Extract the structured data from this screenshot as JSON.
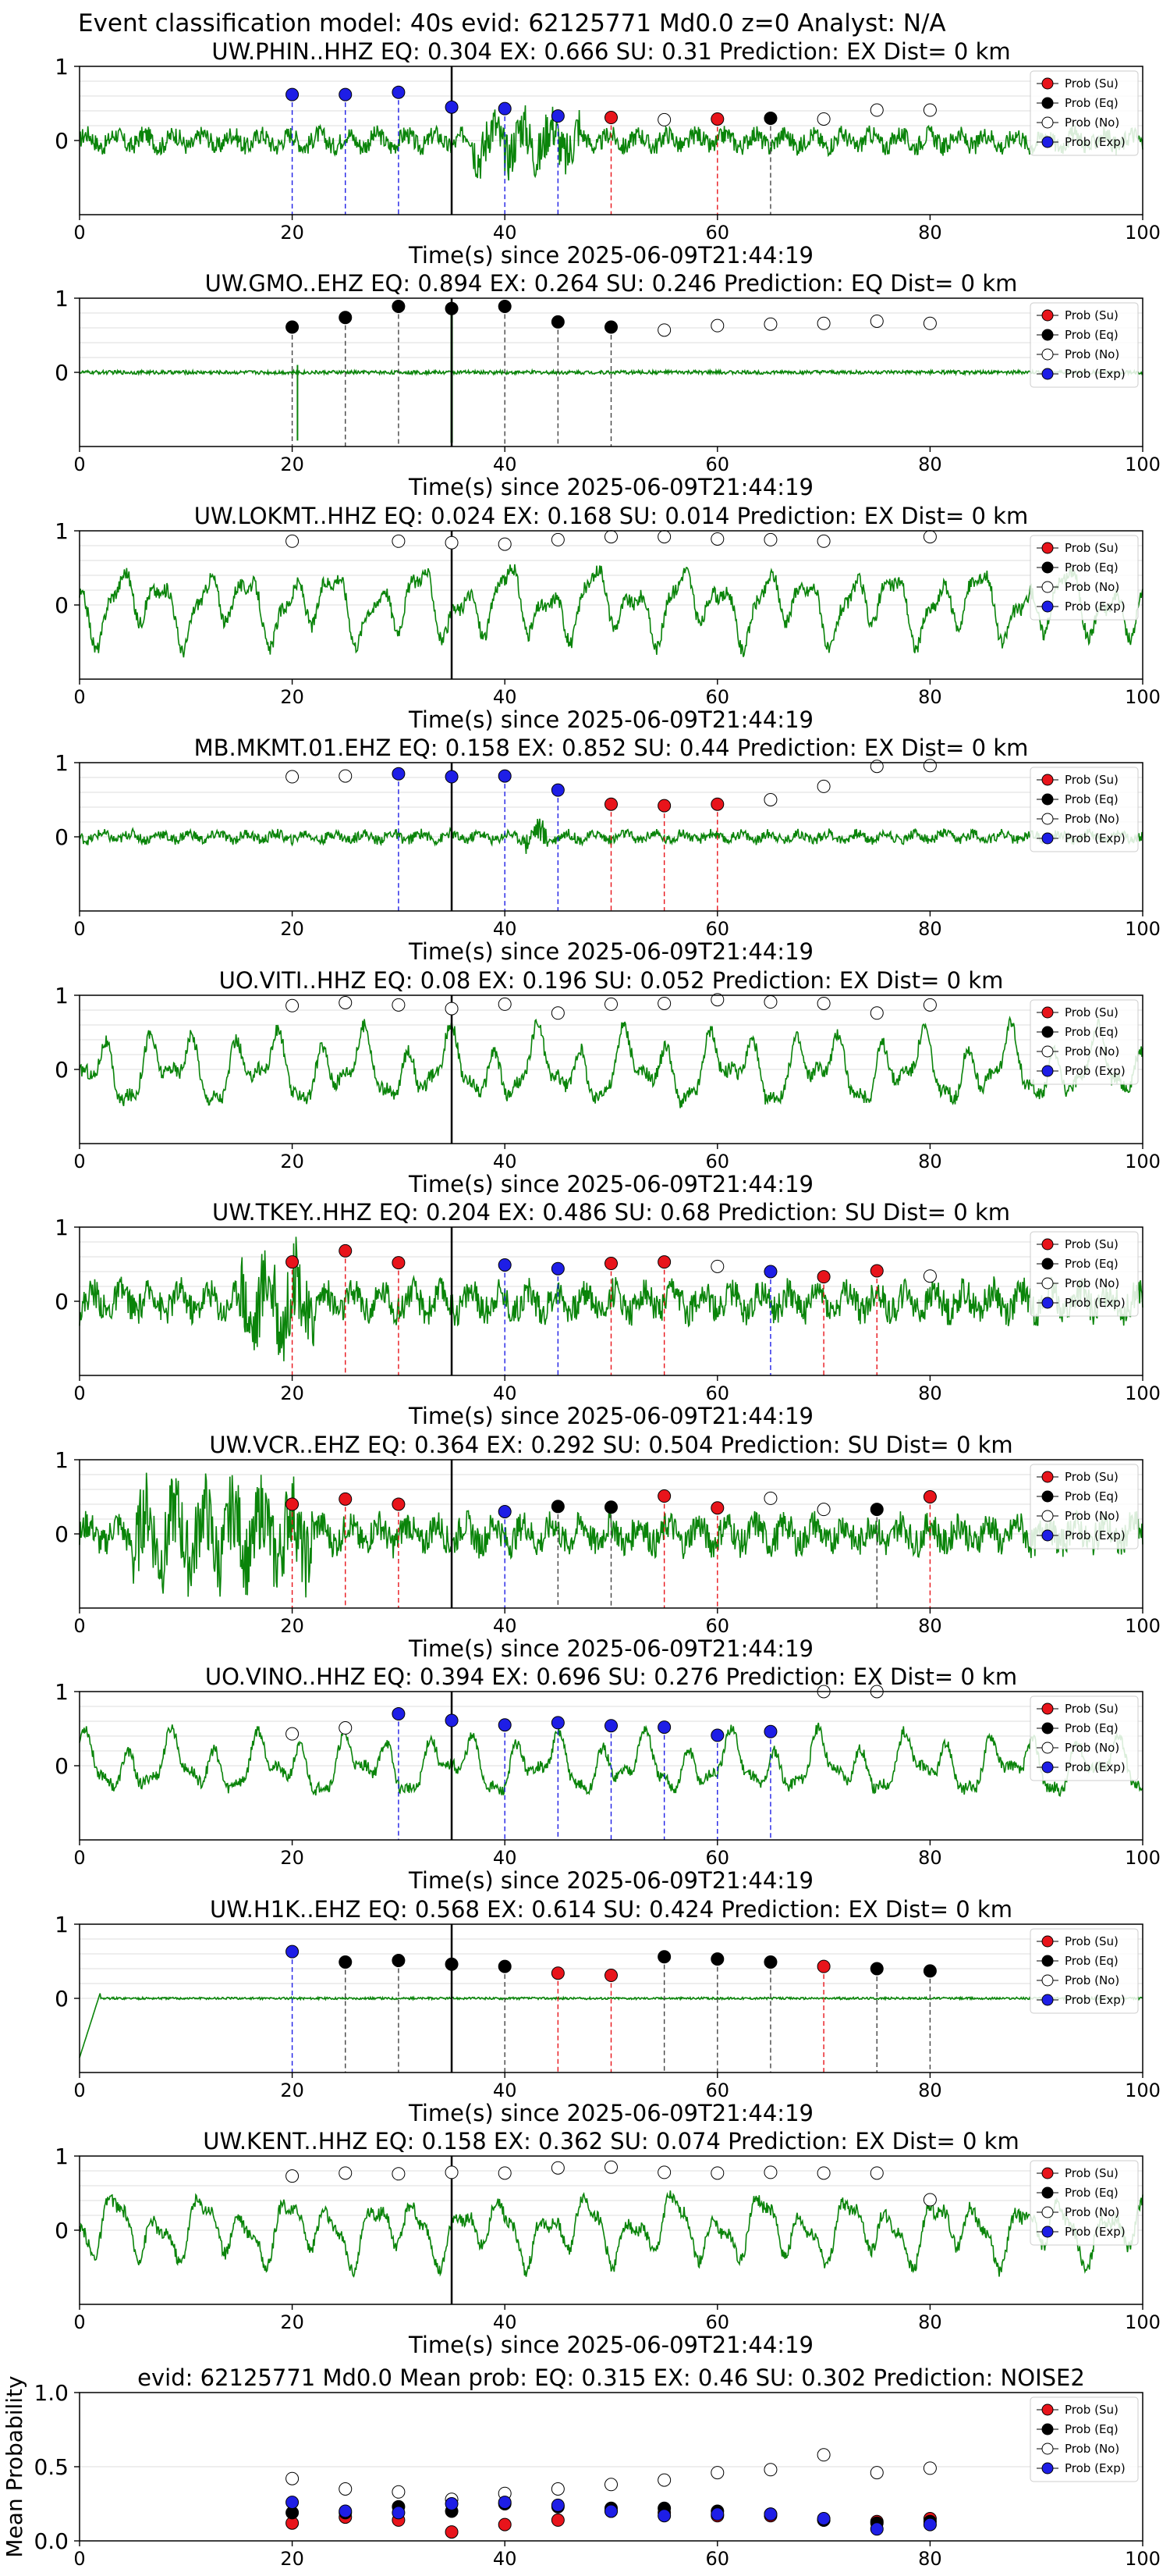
{
  "figure": {
    "suptitle": "Event classification model: 40s evid: 62125771 Md0.0 z=0 Analyst: N/A",
    "xlabel": "Time(s) since 2025-06-09T21:44:19",
    "legend": [
      "Prob (Su)",
      "Prob (Eq)",
      "Prob (No)",
      "Prob (Exp)"
    ],
    "colors": {
      "su": "#e8141b",
      "eq": "#000000",
      "no": "#ffffff",
      "exp": "#1e1ee6",
      "waveform": "#0a840a",
      "pick": "#000000"
    }
  },
  "chart_data": [
    {
      "type": "line",
      "title": "UW.PHIN..HHZ   EQ: 0.304  EX: 0.666  SU: 0.31   Prediction: EX    Dist= 0 km",
      "xlim": [
        0,
        100
      ],
      "ylim": [
        -1,
        1
      ],
      "yticks": [
        "1",
        "0"
      ],
      "xticks": [
        "0",
        "20",
        "40",
        "60",
        "80",
        "100"
      ],
      "pick_time": 35,
      "amp": 0.28,
      "wave_style": "noisy",
      "burst": [
        37,
        47
      ],
      "points": [
        {
          "t": 20,
          "p": 0.62,
          "c": "exp"
        },
        {
          "t": 25,
          "p": 0.62,
          "c": "exp"
        },
        {
          "t": 30,
          "p": 0.65,
          "c": "exp"
        },
        {
          "t": 35,
          "p": 0.45,
          "c": "exp"
        },
        {
          "t": 40,
          "p": 0.43,
          "c": "exp"
        },
        {
          "t": 45,
          "p": 0.33,
          "c": "exp"
        },
        {
          "t": 50,
          "p": 0.31,
          "c": "su"
        },
        {
          "t": 55,
          "p": 0.28,
          "c": "no"
        },
        {
          "t": 60,
          "p": 0.29,
          "c": "su"
        },
        {
          "t": 65,
          "p": 0.3,
          "c": "eq"
        },
        {
          "t": 70,
          "p": 0.29,
          "c": "no"
        },
        {
          "t": 75,
          "p": 0.41,
          "c": "no"
        },
        {
          "t": 80,
          "p": 0.41,
          "c": "no"
        }
      ]
    },
    {
      "type": "line",
      "title": "UW.GMO..EHZ   EQ: 0.894  EX: 0.264  SU: 0.246   Prediction: EQ    Dist= 0 km",
      "xlim": [
        0,
        100
      ],
      "ylim": [
        -1,
        1
      ],
      "yticks": [
        "1",
        "0"
      ],
      "xticks": [
        "0",
        "20",
        "40",
        "60",
        "80",
        "100"
      ],
      "pick_time": 35,
      "amp": 0.05,
      "wave_style": "spiky",
      "points": [
        {
          "t": 20,
          "p": 0.61,
          "c": "eq"
        },
        {
          "t": 25,
          "p": 0.74,
          "c": "eq"
        },
        {
          "t": 30,
          "p": 0.89,
          "c": "eq"
        },
        {
          "t": 35,
          "p": 0.86,
          "c": "eq"
        },
        {
          "t": 40,
          "p": 0.89,
          "c": "eq"
        },
        {
          "t": 45,
          "p": 0.68,
          "c": "eq"
        },
        {
          "t": 50,
          "p": 0.61,
          "c": "eq"
        },
        {
          "t": 55,
          "p": 0.57,
          "c": "no"
        },
        {
          "t": 60,
          "p": 0.63,
          "c": "no"
        },
        {
          "t": 65,
          "p": 0.65,
          "c": "no"
        },
        {
          "t": 70,
          "p": 0.66,
          "c": "no"
        },
        {
          "t": 75,
          "p": 0.69,
          "c": "no"
        },
        {
          "t": 80,
          "p": 0.66,
          "c": "no"
        }
      ]
    },
    {
      "type": "line",
      "title": "UW.LOKMT..HHZ   EQ: 0.024  EX: 0.168  SU: 0.014   Prediction: EX    Dist= 0 km",
      "xlim": [
        0,
        100
      ],
      "ylim": [
        -1,
        1
      ],
      "yticks": [
        "1",
        "0"
      ],
      "xticks": [
        "0",
        "20",
        "40",
        "60",
        "80",
        "100"
      ],
      "pick_time": 35,
      "amp": 0.55,
      "wave_style": "wavy",
      "points": [
        {
          "t": 20,
          "p": 0.86,
          "c": "no"
        },
        {
          "t": 30,
          "p": 0.86,
          "c": "no"
        },
        {
          "t": 35,
          "p": 0.84,
          "c": "no"
        },
        {
          "t": 40,
          "p": 0.82,
          "c": "no"
        },
        {
          "t": 45,
          "p": 0.88,
          "c": "no"
        },
        {
          "t": 50,
          "p": 0.92,
          "c": "no"
        },
        {
          "t": 55,
          "p": 0.92,
          "c": "no"
        },
        {
          "t": 60,
          "p": 0.89,
          "c": "no"
        },
        {
          "t": 65,
          "p": 0.88,
          "c": "no"
        },
        {
          "t": 70,
          "p": 0.86,
          "c": "no"
        },
        {
          "t": 80,
          "p": 0.92,
          "c": "no"
        }
      ]
    },
    {
      "type": "line",
      "title": "MB.MKMT.01.EHZ   EQ: 0.158  EX: 0.852  SU: 0.44   Prediction: EX    Dist= 0 km",
      "xlim": [
        0,
        100
      ],
      "ylim": [
        -1,
        1
      ],
      "yticks": [
        "1",
        "0"
      ],
      "xticks": [
        "0",
        "20",
        "40",
        "60",
        "80",
        "100"
      ],
      "pick_time": 35,
      "amp": 0.15,
      "wave_style": "noisy",
      "burst": [
        42,
        44
      ],
      "points": [
        {
          "t": 20,
          "p": 0.81,
          "c": "no"
        },
        {
          "t": 25,
          "p": 0.82,
          "c": "no"
        },
        {
          "t": 30,
          "p": 0.85,
          "c": "exp"
        },
        {
          "t": 35,
          "p": 0.81,
          "c": "exp"
        },
        {
          "t": 40,
          "p": 0.82,
          "c": "exp"
        },
        {
          "t": 45,
          "p": 0.63,
          "c": "exp"
        },
        {
          "t": 50,
          "p": 0.44,
          "c": "su"
        },
        {
          "t": 55,
          "p": 0.42,
          "c": "su"
        },
        {
          "t": 60,
          "p": 0.44,
          "c": "su"
        },
        {
          "t": 65,
          "p": 0.5,
          "c": "no"
        },
        {
          "t": 70,
          "p": 0.68,
          "c": "no"
        },
        {
          "t": 75,
          "p": 0.95,
          "c": "no"
        },
        {
          "t": 80,
          "p": 0.96,
          "c": "no"
        }
      ]
    },
    {
      "type": "line",
      "title": "UO.VITI..HHZ   EQ: 0.08  EX: 0.196  SU: 0.052   Prediction: EX    Dist= 0 km",
      "xlim": [
        0,
        100
      ],
      "ylim": [
        -1,
        1
      ],
      "yticks": [
        "1",
        "0"
      ],
      "xticks": [
        "0",
        "20",
        "40",
        "60",
        "80",
        "100"
      ],
      "pick_time": 35,
      "amp": 0.55,
      "wave_style": "wavy",
      "points": [
        {
          "t": 20,
          "p": 0.86,
          "c": "no"
        },
        {
          "t": 25,
          "p": 0.9,
          "c": "no"
        },
        {
          "t": 30,
          "p": 0.87,
          "c": "no"
        },
        {
          "t": 35,
          "p": 0.82,
          "c": "no"
        },
        {
          "t": 40,
          "p": 0.88,
          "c": "no"
        },
        {
          "t": 45,
          "p": 0.76,
          "c": "no"
        },
        {
          "t": 50,
          "p": 0.88,
          "c": "no"
        },
        {
          "t": 55,
          "p": 0.89,
          "c": "no"
        },
        {
          "t": 60,
          "p": 0.94,
          "c": "no"
        },
        {
          "t": 65,
          "p": 0.91,
          "c": "no"
        },
        {
          "t": 70,
          "p": 0.89,
          "c": "no"
        },
        {
          "t": 75,
          "p": 0.76,
          "c": "no"
        },
        {
          "t": 80,
          "p": 0.87,
          "c": "no"
        }
      ]
    },
    {
      "type": "line",
      "title": "UW.TKEY..HHZ   EQ: 0.204  EX: 0.486  SU: 0.68   Prediction: SU    Dist= 0 km",
      "xlim": [
        0,
        100
      ],
      "ylim": [
        -1,
        1
      ],
      "yticks": [
        "1",
        "0"
      ],
      "xticks": [
        "0",
        "20",
        "40",
        "60",
        "80",
        "100"
      ],
      "pick_time": 35,
      "amp": 0.45,
      "wave_style": "noisy",
      "burst": [
        15,
        22
      ],
      "points": [
        {
          "t": 20,
          "p": 0.53,
          "c": "su"
        },
        {
          "t": 25,
          "p": 0.68,
          "c": "su"
        },
        {
          "t": 30,
          "p": 0.52,
          "c": "su"
        },
        {
          "t": 40,
          "p": 0.49,
          "c": "exp"
        },
        {
          "t": 45,
          "p": 0.44,
          "c": "exp"
        },
        {
          "t": 50,
          "p": 0.51,
          "c": "su"
        },
        {
          "t": 55,
          "p": 0.53,
          "c": "su"
        },
        {
          "t": 60,
          "p": 0.47,
          "c": "no"
        },
        {
          "t": 65,
          "p": 0.4,
          "c": "exp"
        },
        {
          "t": 70,
          "p": 0.33,
          "c": "su"
        },
        {
          "t": 75,
          "p": 0.41,
          "c": "su"
        },
        {
          "t": 80,
          "p": 0.34,
          "c": "no"
        }
      ]
    },
    {
      "type": "line",
      "title": "UW.VCR..EHZ   EQ: 0.364  EX: 0.292  SU: 0.504   Prediction: SU    Dist= 0 km",
      "xlim": [
        0,
        100
      ],
      "ylim": [
        -1,
        1
      ],
      "yticks": [
        "1",
        "0"
      ],
      "xticks": [
        "0",
        "20",
        "40",
        "60",
        "80",
        "100"
      ],
      "pick_time": 35,
      "amp": 0.45,
      "wave_style": "noisy",
      "burst": [
        5,
        22
      ],
      "points": [
        {
          "t": 20,
          "p": 0.4,
          "c": "su"
        },
        {
          "t": 25,
          "p": 0.47,
          "c": "su"
        },
        {
          "t": 30,
          "p": 0.4,
          "c": "su"
        },
        {
          "t": 40,
          "p": 0.3,
          "c": "exp"
        },
        {
          "t": 45,
          "p": 0.37,
          "c": "eq"
        },
        {
          "t": 50,
          "p": 0.36,
          "c": "eq"
        },
        {
          "t": 55,
          "p": 0.51,
          "c": "su"
        },
        {
          "t": 60,
          "p": 0.35,
          "c": "su"
        },
        {
          "t": 65,
          "p": 0.48,
          "c": "no"
        },
        {
          "t": 70,
          "p": 0.33,
          "c": "no"
        },
        {
          "t": 75,
          "p": 0.33,
          "c": "eq"
        },
        {
          "t": 80,
          "p": 0.5,
          "c": "su"
        }
      ]
    },
    {
      "type": "line",
      "title": "UO.VINO..HHZ   EQ: 0.394  EX: 0.696  SU: 0.276   Prediction: EX    Dist= 0 km",
      "xlim": [
        0,
        100
      ],
      "ylim": [
        -1,
        1
      ],
      "yticks": [
        "1",
        "0"
      ],
      "xticks": [
        "0",
        "20",
        "40",
        "60",
        "80",
        "100"
      ],
      "pick_time": 35,
      "amp": 0.45,
      "wave_style": "wavy",
      "points": [
        {
          "t": 20,
          "p": 0.43,
          "c": "no"
        },
        {
          "t": 25,
          "p": 0.51,
          "c": "no"
        },
        {
          "t": 30,
          "p": 0.7,
          "c": "exp"
        },
        {
          "t": 35,
          "p": 0.61,
          "c": "exp"
        },
        {
          "t": 40,
          "p": 0.55,
          "c": "exp"
        },
        {
          "t": 45,
          "p": 0.58,
          "c": "exp"
        },
        {
          "t": 50,
          "p": 0.54,
          "c": "exp"
        },
        {
          "t": 55,
          "p": 0.52,
          "c": "exp"
        },
        {
          "t": 60,
          "p": 0.41,
          "c": "exp"
        },
        {
          "t": 65,
          "p": 0.46,
          "c": "exp"
        },
        {
          "t": 70,
          "p": 1.0,
          "c": "no"
        },
        {
          "t": 75,
          "p": 1.0,
          "c": "no"
        }
      ]
    },
    {
      "type": "line",
      "title": "UW.H1K..EHZ   EQ: 0.568  EX: 0.614  SU: 0.424   Prediction: EX    Dist= 0 km",
      "xlim": [
        0,
        100
      ],
      "ylim": [
        -1,
        1
      ],
      "yticks": [
        "1",
        "0"
      ],
      "xticks": [
        "0",
        "20",
        "40",
        "60",
        "80",
        "100"
      ],
      "pick_time": 35,
      "amp": 0.03,
      "wave_style": "flat",
      "points": [
        {
          "t": 20,
          "p": 0.63,
          "c": "exp"
        },
        {
          "t": 25,
          "p": 0.49,
          "c": "eq"
        },
        {
          "t": 30,
          "p": 0.51,
          "c": "eq"
        },
        {
          "t": 35,
          "p": 0.46,
          "c": "eq"
        },
        {
          "t": 40,
          "p": 0.43,
          "c": "eq"
        },
        {
          "t": 45,
          "p": 0.34,
          "c": "su"
        },
        {
          "t": 50,
          "p": 0.31,
          "c": "su"
        },
        {
          "t": 55,
          "p": 0.56,
          "c": "eq"
        },
        {
          "t": 60,
          "p": 0.53,
          "c": "eq"
        },
        {
          "t": 65,
          "p": 0.49,
          "c": "eq"
        },
        {
          "t": 70,
          "p": 0.43,
          "c": "su"
        },
        {
          "t": 75,
          "p": 0.4,
          "c": "eq"
        },
        {
          "t": 80,
          "p": 0.37,
          "c": "eq"
        }
      ]
    },
    {
      "type": "line",
      "title": "UW.KENT..HHZ   EQ: 0.158  EX: 0.362  SU: 0.074   Prediction: EX    Dist= 0 km",
      "xlim": [
        0,
        100
      ],
      "ylim": [
        -1,
        1
      ],
      "yticks": [
        "1",
        "0"
      ],
      "xticks": [
        "0",
        "20",
        "40",
        "60",
        "80",
        "100"
      ],
      "pick_time": 35,
      "amp": 0.5,
      "wave_style": "wavy",
      "points": [
        {
          "t": 20,
          "p": 0.73,
          "c": "no"
        },
        {
          "t": 25,
          "p": 0.77,
          "c": "no"
        },
        {
          "t": 30,
          "p": 0.76,
          "c": "no"
        },
        {
          "t": 35,
          "p": 0.78,
          "c": "no"
        },
        {
          "t": 40,
          "p": 0.77,
          "c": "no"
        },
        {
          "t": 45,
          "p": 0.84,
          "c": "no"
        },
        {
          "t": 50,
          "p": 0.85,
          "c": "no"
        },
        {
          "t": 55,
          "p": 0.78,
          "c": "no"
        },
        {
          "t": 60,
          "p": 0.77,
          "c": "no"
        },
        {
          "t": 65,
          "p": 0.78,
          "c": "no"
        },
        {
          "t": 70,
          "p": 0.77,
          "c": "no"
        },
        {
          "t": 75,
          "p": 0.77,
          "c": "no"
        },
        {
          "t": 80,
          "p": 0.41,
          "c": "no"
        }
      ]
    },
    {
      "type": "scatter",
      "title": "evid: 62125771  Md0.0   Mean prob:   EQ: 0.315  EX: 0.46  SU: 0.302   Prediction: NOISE2",
      "ylabel": "Mean Probability",
      "xlim": [
        0,
        100
      ],
      "ylim": [
        0,
        1
      ],
      "yticks": [
        "1.0",
        "0.5",
        "0.0"
      ],
      "xticks": [
        "0",
        "20",
        "40",
        "60",
        "80",
        "100"
      ],
      "series": [
        {
          "name": "Prob (Su)",
          "c": "su",
          "x": [
            20,
            25,
            30,
            35,
            40,
            45,
            50,
            55,
            60,
            65,
            70,
            75,
            80
          ],
          "y": [
            0.12,
            0.16,
            0.14,
            0.06,
            0.11,
            0.14,
            0.2,
            0.19,
            0.17,
            0.17,
            0.14,
            0.13,
            0.15
          ]
        },
        {
          "name": "Prob (Eq)",
          "c": "eq",
          "x": [
            20,
            25,
            30,
            35,
            40,
            45,
            50,
            55,
            60,
            65,
            70,
            75,
            80
          ],
          "y": [
            0.19,
            0.19,
            0.23,
            0.2,
            0.25,
            0.23,
            0.22,
            0.22,
            0.2,
            0.18,
            0.14,
            0.12,
            0.13
          ]
        },
        {
          "name": "Prob (No)",
          "c": "no",
          "x": [
            20,
            25,
            30,
            35,
            40,
            45,
            50,
            55,
            60,
            65,
            70,
            75,
            80
          ],
          "y": [
            0.42,
            0.35,
            0.33,
            0.28,
            0.32,
            0.35,
            0.38,
            0.41,
            0.46,
            0.48,
            0.58,
            0.46,
            0.49
          ]
        },
        {
          "name": "Prob (Exp)",
          "c": "exp",
          "x": [
            20,
            25,
            30,
            35,
            40,
            45,
            50,
            55,
            60,
            65,
            70,
            75,
            80
          ],
          "y": [
            0.26,
            0.2,
            0.19,
            0.25,
            0.26,
            0.24,
            0.2,
            0.17,
            0.18,
            0.18,
            0.15,
            0.08,
            0.11
          ]
        }
      ]
    }
  ]
}
